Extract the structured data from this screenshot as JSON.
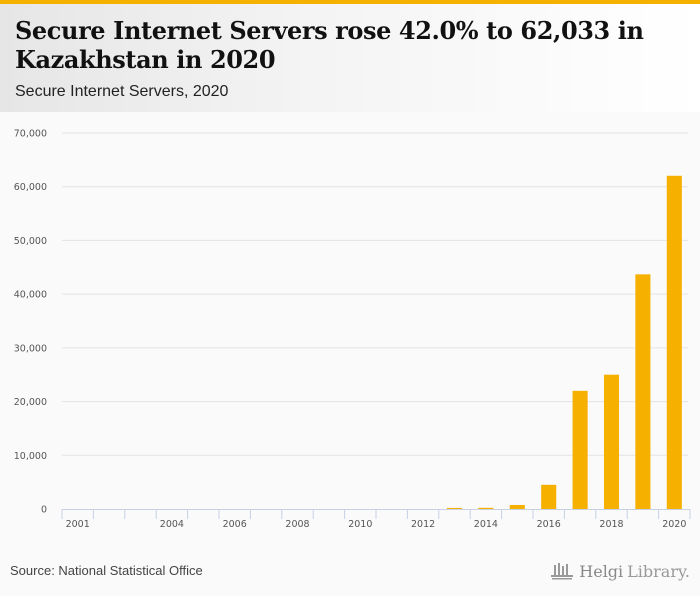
{
  "header": {
    "title": "Secure Internet Servers rose 42.0% to 62,033 in Kazakhstan in 2020",
    "subtitle": "Secure Internet Servers, 2020"
  },
  "footer": {
    "source": "Source: National Statistical Office",
    "logo_main": "Helgi",
    "logo_lib": "Library."
  },
  "colors": {
    "bar": "#f6b000",
    "accent": "#f6b000",
    "grid": "#e3e3e3",
    "axis": "#c8d0e6"
  },
  "chart_data": {
    "type": "bar",
    "title": "Secure Internet Servers rose 42.0% to 62,033 in Kazakhstan in 2020",
    "subtitle": "Secure Internet Servers, 2020",
    "xlabel": "",
    "ylabel": "",
    "categories": [
      "2001",
      "2002",
      "2003",
      "2004",
      "2005",
      "2006",
      "2007",
      "2008",
      "2009",
      "2010",
      "2011",
      "2012",
      "2013",
      "2014",
      "2015",
      "2016",
      "2017",
      "2018",
      "2019",
      "2020"
    ],
    "xtick_labels": [
      "2001",
      "2004",
      "2006",
      "2008",
      "2010",
      "2012",
      "2014",
      "2016",
      "2018",
      "2020"
    ],
    "values": [
      0,
      0,
      0,
      0,
      0,
      0,
      0,
      0,
      0,
      0,
      0,
      0,
      200,
      220,
      750,
      4500,
      22000,
      25000,
      43685,
      62033
    ],
    "ylim": [
      0,
      70000
    ],
    "yticks": [
      0,
      10000,
      20000,
      30000,
      40000,
      50000,
      60000,
      70000
    ],
    "ytick_labels": [
      "0",
      "10,000",
      "20,000",
      "30,000",
      "40,000",
      "50,000",
      "60,000",
      "70,000"
    ],
    "grid": true,
    "legend": "none"
  }
}
